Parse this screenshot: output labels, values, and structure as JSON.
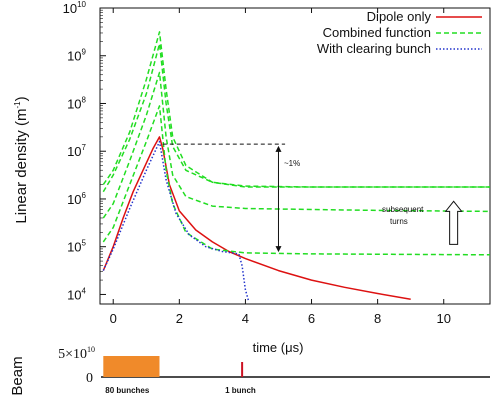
{
  "chart_data": [
    {
      "type": "line",
      "ylabel": "Linear density (m",
      "ylabel_sup": "-1",
      "ylabel_close": ")",
      "xlabel": "time (μs)",
      "xlim": [
        -0.4,
        11.4
      ],
      "yscale": "log",
      "ylim_exp": [
        3.8,
        10
      ],
      "x_ticks": [
        "0",
        "2",
        "4",
        "6",
        "8",
        "10"
      ],
      "x_tick_values": [
        0,
        2,
        4,
        6,
        8,
        10
      ],
      "y_ticks": [
        {
          "base": "10",
          "exp": "4",
          "v": 4
        },
        {
          "base": "10",
          "exp": "5",
          "v": 5
        },
        {
          "base": "10",
          "exp": "6",
          "v": 6
        },
        {
          "base": "10",
          "exp": "7",
          "v": 7
        },
        {
          "base": "10",
          "exp": "8",
          "v": 8
        },
        {
          "base": "10",
          "exp": "9",
          "v": 9
        },
        {
          "base": "10",
          "exp": "10",
          "v": 10
        }
      ],
      "legend_position": "top-right",
      "series": [
        {
          "name": "Dipole only",
          "color": "#dd1111",
          "style": "solid",
          "points": [
            [
              -0.3,
              4.5
            ],
            [
              0,
              5.0
            ],
            [
              0.3,
              5.6
            ],
            [
              0.6,
              6.15
            ],
            [
              0.9,
              6.6
            ],
            [
              1.2,
              7.05
            ],
            [
              1.4,
              7.3
            ],
            [
              1.5,
              7.05
            ],
            [
              1.7,
              6.3
            ],
            [
              2.0,
              5.75
            ],
            [
              2.5,
              5.35
            ],
            [
              3.0,
              5.1
            ],
            [
              3.5,
              4.9
            ],
            [
              4.0,
              4.75
            ],
            [
              5.0,
              4.5
            ],
            [
              6.0,
              4.3
            ],
            [
              7.0,
              4.15
            ],
            [
              8.0,
              4.02
            ],
            [
              9.0,
              3.9
            ]
          ]
        },
        {
          "name": "Combined function",
          "color": "#22dd22",
          "style": "dashed",
          "curves": [
            {
              "points": [
                [
                  -0.3,
                  6.3
                ],
                [
                  0,
                  6.6
                ],
                [
                  0.5,
                  7.4
                ],
                [
                  1.0,
                  8.5
                ],
                [
                  1.4,
                  9.5
                ],
                [
                  1.6,
                  8.3
                ],
                [
                  1.8,
                  7.3
                ],
                [
                  2.2,
                  6.7
                ],
                [
                  3.0,
                  6.35
                ],
                [
                  4.0,
                  6.25
                ],
                [
                  6.0,
                  6.25
                ],
                [
                  8.0,
                  6.25
                ],
                [
                  11.4,
                  6.25
                ]
              ]
            },
            {
              "points": [
                [
                  -0.3,
                  6.15
                ],
                [
                  0,
                  6.5
                ],
                [
                  0.5,
                  7.25
                ],
                [
                  1.0,
                  8.2
                ],
                [
                  1.4,
                  9.25
                ],
                [
                  1.6,
                  8.0
                ],
                [
                  1.8,
                  7.1
                ],
                [
                  2.2,
                  6.6
                ],
                [
                  3.0,
                  6.35
                ],
                [
                  4.0,
                  6.27
                ],
                [
                  6.0,
                  6.25
                ],
                [
                  11.4,
                  6.25
                ]
              ]
            },
            {
              "points": [
                [
                  -0.3,
                  5.6
                ],
                [
                  0,
                  5.9
                ],
                [
                  0.5,
                  6.8
                ],
                [
                  1.0,
                  7.75
                ],
                [
                  1.4,
                  8.65
                ],
                [
                  1.6,
                  7.3
                ],
                [
                  1.8,
                  6.5
                ],
                [
                  2.2,
                  6.05
                ],
                [
                  3.0,
                  5.85
                ],
                [
                  4.0,
                  5.8
                ],
                [
                  6.0,
                  5.78
                ],
                [
                  8.0,
                  5.76
                ],
                [
                  11.4,
                  5.74
                ]
              ]
            },
            {
              "points": [
                [
                  -0.3,
                  5.1
                ],
                [
                  0,
                  5.4
                ],
                [
                  0.5,
                  6.3
                ],
                [
                  1.0,
                  7.2
                ],
                [
                  1.4,
                  7.95
                ],
                [
                  1.6,
                  6.6
                ],
                [
                  1.8,
                  5.9
                ],
                [
                  2.2,
                  5.3
                ],
                [
                  3.0,
                  4.95
                ],
                [
                  4.0,
                  4.87
                ],
                [
                  6.0,
                  4.85
                ],
                [
                  11.4,
                  4.83
                ]
              ]
            }
          ]
        },
        {
          "name": "With clearing bunch",
          "color": "#2233cc",
          "style": "dotted",
          "points": [
            [
              -0.3,
              4.5
            ],
            [
              0,
              4.95
            ],
            [
              0.5,
              5.8
            ],
            [
              1.0,
              6.6
            ],
            [
              1.4,
              7.2
            ],
            [
              1.6,
              6.4
            ],
            [
              1.9,
              5.7
            ],
            [
              2.3,
              5.25
            ],
            [
              2.8,
              5.0
            ],
            [
              3.3,
              4.9
            ],
            [
              3.8,
              4.85
            ],
            [
              3.9,
              4.6
            ],
            [
              4.0,
              4.1
            ],
            [
              4.1,
              3.85
            ]
          ]
        }
      ],
      "annotations": {
        "percent": "~1%",
        "subsequent_line1": "subsequent",
        "subsequent_line2": "turns",
        "dashed_ref_exp": 7.15,
        "dashed_ref_x": [
          1.5,
          5.2
        ],
        "bracket_x": 5.0,
        "bracket_exp": [
          7.05,
          4.95
        ],
        "arrow_x": 10.3,
        "arrow_exp": [
          5.05,
          5.95
        ]
      }
    },
    {
      "type": "bar",
      "ylabel": "Beam",
      "y_max_label": "5×10",
      "y_max_exp": "10",
      "y_zero_label": "0",
      "bunch_train": {
        "start": -0.3,
        "end": 1.4,
        "label": "80 bunches",
        "color": "#f08a2a"
      },
      "clearing_bunch": {
        "x": 3.9,
        "label": "1 bunch",
        "color": "#cc1122"
      }
    }
  ]
}
